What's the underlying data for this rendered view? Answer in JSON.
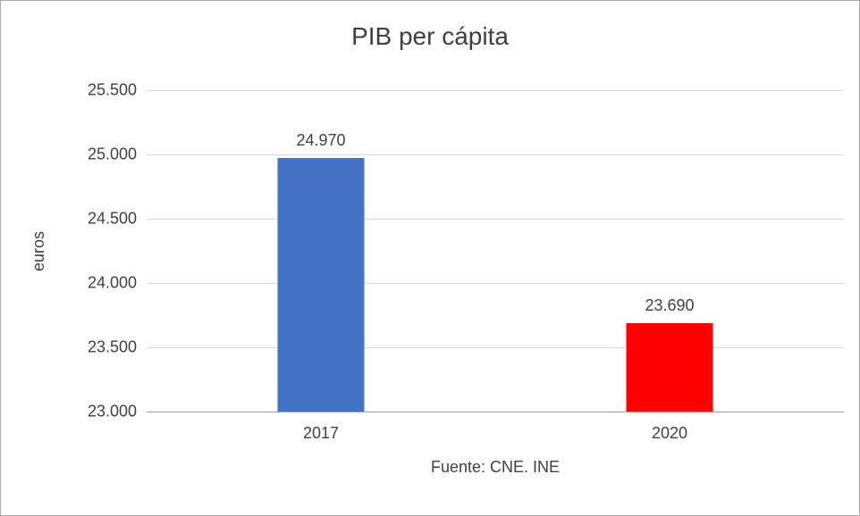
{
  "chart_data": {
    "type": "bar",
    "title": "PIB per cápita",
    "xlabel": "",
    "ylabel": "euros",
    "categories": [
      "2017",
      "2020"
    ],
    "values": [
      24970,
      23690
    ],
    "value_labels": [
      "24.970",
      "23.690"
    ],
    "bar_colors": [
      "#4472C4",
      "#FF0000"
    ],
    "ylim": [
      23000,
      25500
    ],
    "yticks": [
      {
        "value": 25500,
        "label": "25.500"
      },
      {
        "value": 25000,
        "label": "25.000"
      },
      {
        "value": 24500,
        "label": "24.500"
      },
      {
        "value": 24000,
        "label": "24.000"
      },
      {
        "value": 23500,
        "label": "23.500"
      },
      {
        "value": 23000,
        "label": "23.000"
      }
    ],
    "grid": true,
    "legend": "none",
    "source_note": "Fuente: CNE. INE"
  }
}
